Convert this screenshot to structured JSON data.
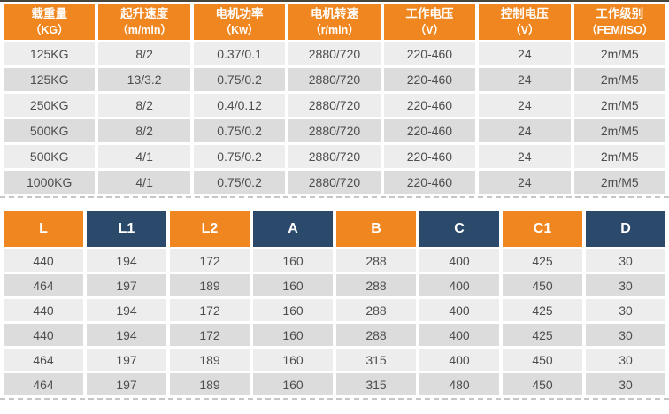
{
  "colors": {
    "orange": "#EF861F",
    "navy": "#2B4A6B",
    "row_light": "#EDEDEE",
    "row_dark": "#DCDCDD",
    "cell_text": "#4D4D4D",
    "header_text": "#FFFFFF",
    "dashed_divider": "#C6C6C6",
    "top_line": "#45453D"
  },
  "spec_table": {
    "headers": [
      {
        "line1": "载重量",
        "line2": "（KG）"
      },
      {
        "line1": "起升速度",
        "line2": "（m/min）"
      },
      {
        "line1": "电机功率",
        "line2": "（Kw）"
      },
      {
        "line1": "电机转速",
        "line2": "（r/min）"
      },
      {
        "line1": "工作电压",
        "line2": "（V）"
      },
      {
        "line1": "控制电压",
        "line2": "（V）"
      },
      {
        "line1": "工作级别",
        "line2": "（FEM/ISO）"
      }
    ],
    "rows": [
      [
        "125KG",
        "8/2",
        "0.37/0.1",
        "2880/720",
        "220-460",
        "24",
        "2m/M5"
      ],
      [
        "125KG",
        "13/3.2",
        "0.75/0.2",
        "2880/720",
        "220-460",
        "24",
        "2m/M5"
      ],
      [
        "250KG",
        "8/2",
        "0.4/0.12",
        "2880/720",
        "220-460",
        "24",
        "2m/M5"
      ],
      [
        "500KG",
        "8/2",
        "0.75/0.2",
        "2880/720",
        "220-460",
        "24",
        "2m/M5"
      ],
      [
        "500KG",
        "4/1",
        "0.75/0.2",
        "2880/720",
        "220-460",
        "24",
        "2m/M5"
      ],
      [
        "1000KG",
        "4/1",
        "0.75/0.2",
        "2880/720",
        "220-460",
        "24",
        "2m/M5"
      ]
    ]
  },
  "dimension_table": {
    "headers": [
      "L",
      "L1",
      "L2",
      "A",
      "B",
      "C",
      "C1",
      "D"
    ],
    "rows": [
      [
        "440",
        "194",
        "172",
        "160",
        "288",
        "400",
        "425",
        "30"
      ],
      [
        "464",
        "197",
        "189",
        "160",
        "288",
        "400",
        "450",
        "30"
      ],
      [
        "440",
        "194",
        "172",
        "160",
        "288",
        "400",
        "425",
        "30"
      ],
      [
        "440",
        "194",
        "172",
        "160",
        "288",
        "400",
        "425",
        "30"
      ],
      [
        "464",
        "197",
        "189",
        "160",
        "315",
        "400",
        "450",
        "30"
      ],
      [
        "464",
        "197",
        "189",
        "160",
        "315",
        "480",
        "450",
        "30"
      ]
    ]
  }
}
